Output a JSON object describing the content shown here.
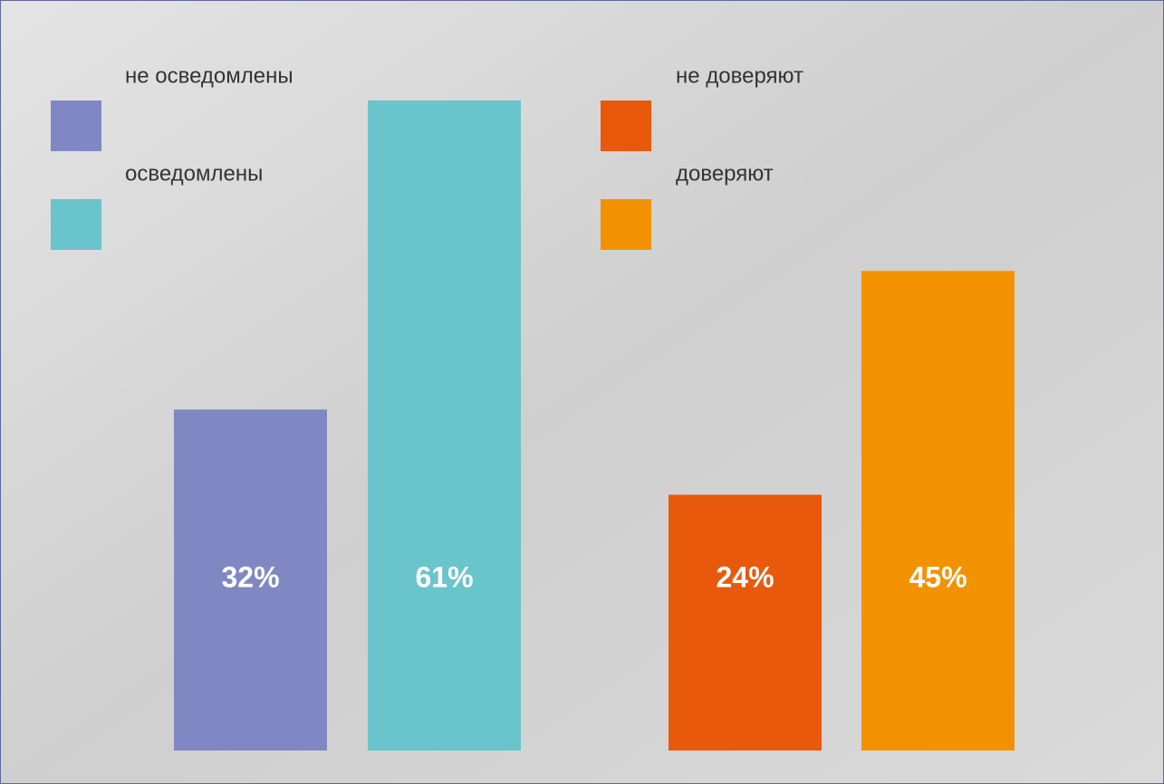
{
  "chart_data": [
    {
      "type": "bar",
      "ylim": [
        0,
        61
      ],
      "series": [
        {
          "name": "не осведомлены",
          "color": "#8088c3",
          "values": [
            32
          ],
          "value_labels": [
            "32%"
          ]
        },
        {
          "name": "осведомлены",
          "color": "#69c4cb",
          "values": [
            61
          ],
          "value_labels": [
            "61%"
          ]
        }
      ]
    },
    {
      "type": "bar",
      "ylim": [
        0,
        61
      ],
      "series": [
        {
          "name": "не доверяют",
          "color": "#e8590c",
          "values": [
            24
          ],
          "value_labels": [
            "24%"
          ]
        },
        {
          "name": "доверяют",
          "color": "#f29200",
          "values": [
            45
          ],
          "value_labels": [
            "45%"
          ]
        }
      ]
    }
  ]
}
